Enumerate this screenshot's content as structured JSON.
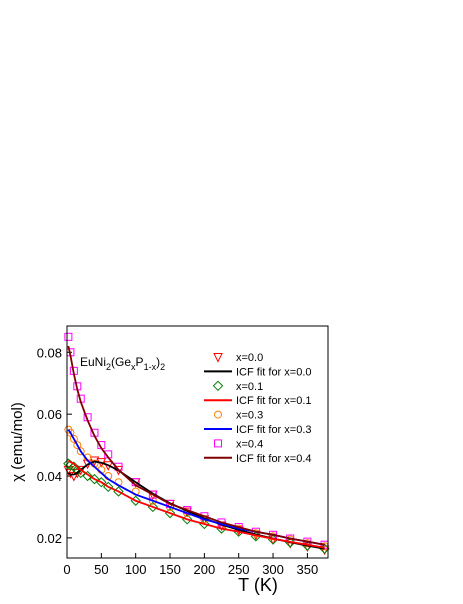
{
  "chart_data": {
    "type": "line",
    "title_parts": [
      {
        "text": "EuNi",
        "baseline": "normal"
      },
      {
        "text": "2",
        "baseline": "sub"
      },
      {
        "text": "(Ge",
        "baseline": "normal"
      },
      {
        "text": "x",
        "baseline": "sub"
      },
      {
        "text": "P",
        "baseline": "normal"
      },
      {
        "text": "1-x",
        "baseline": "sub"
      },
      {
        "text": ")",
        "baseline": "normal"
      },
      {
        "text": "2",
        "baseline": "sub"
      }
    ],
    "x_label": "T (K)",
    "y_label": "χ (emu/mol)",
    "x": [
      2,
      5,
      10,
      15,
      20,
      30,
      40,
      50,
      60,
      75,
      100,
      125,
      150,
      175,
      200,
      225,
      250,
      275,
      300,
      325,
      350,
      375
    ],
    "xlim": [
      0,
      380
    ],
    "xticks": [
      0,
      50,
      100,
      150,
      200,
      250,
      300,
      350
    ],
    "ylim": [
      0.0135,
      0.0885
    ],
    "yticks": [
      0.02,
      0.04,
      0.06,
      0.08
    ],
    "series": [
      {
        "name": "x=0.0",
        "kind": "marker",
        "marker": "triangle-down",
        "color": "#ff0000",
        "values": [
          0.042,
          0.041,
          0.04,
          0.041,
          0.042,
          0.044,
          0.045,
          0.0445,
          0.0435,
          0.042,
          0.038,
          0.034,
          0.031,
          0.0285,
          0.026,
          0.024,
          0.0225,
          0.021,
          0.0195,
          0.0183,
          0.0172,
          0.0162
        ]
      },
      {
        "name": "ICF fit for x=0.0",
        "kind": "line",
        "color": "#000000",
        "values": [
          0.041,
          0.0405,
          0.0405,
          0.041,
          0.042,
          0.0437,
          0.0447,
          0.0443,
          0.0435,
          0.0418,
          0.038,
          0.0343,
          0.0312,
          0.0287,
          0.0263,
          0.0243,
          0.0226,
          0.0211,
          0.0198,
          0.0186,
          0.0175,
          0.0165
        ]
      },
      {
        "name": "x=0.1",
        "kind": "marker",
        "marker": "diamond",
        "color": "#008000",
        "values": [
          0.044,
          0.0435,
          0.043,
          0.042,
          0.041,
          0.04,
          0.039,
          0.038,
          0.0365,
          0.035,
          0.032,
          0.03,
          0.028,
          0.026,
          0.0245,
          0.023,
          0.022,
          0.0205,
          0.0195,
          0.0185,
          0.0175,
          0.0165
        ]
      },
      {
        "name": "ICF fit for x=0.1",
        "kind": "line",
        "color": "#ff0000",
        "values": [
          0.045,
          0.0445,
          0.044,
          0.043,
          0.042,
          0.0405,
          0.039,
          0.038,
          0.0365,
          0.035,
          0.032,
          0.03,
          0.028,
          0.026,
          0.0245,
          0.023,
          0.022,
          0.0208,
          0.0197,
          0.0187,
          0.0178,
          0.0168
        ]
      },
      {
        "name": "x=0.3",
        "kind": "marker",
        "marker": "circle",
        "color": "#ff8000",
        "values": [
          0.055,
          0.054,
          0.052,
          0.05,
          0.048,
          0.046,
          0.044,
          0.042,
          0.04,
          0.038,
          0.035,
          0.032,
          0.03,
          0.028,
          0.026,
          0.024,
          0.023,
          0.0215,
          0.0205,
          0.0195,
          0.0183,
          0.0173
        ]
      },
      {
        "name": "ICF fit for x=0.3",
        "kind": "line",
        "color": "#0000ff",
        "values": [
          0.055,
          0.054,
          0.052,
          0.05,
          0.048,
          0.045,
          0.043,
          0.041,
          0.039,
          0.037,
          0.034,
          0.032,
          0.03,
          0.028,
          0.026,
          0.0245,
          0.023,
          0.022,
          0.021,
          0.0198,
          0.0188,
          0.0178
        ]
      },
      {
        "name": "x=0.4",
        "kind": "marker",
        "marker": "square",
        "color": "#ff00ff",
        "values": [
          0.085,
          0.08,
          0.074,
          0.069,
          0.065,
          0.059,
          0.054,
          0.05,
          0.047,
          0.043,
          0.038,
          0.034,
          0.031,
          0.029,
          0.027,
          0.025,
          0.0235,
          0.022,
          0.021,
          0.0198,
          0.0188,
          0.0178
        ]
      },
      {
        "name": "ICF fit for x=0.4",
        "kind": "line",
        "color": "#800000",
        "values": [
          0.082,
          0.079,
          0.073,
          0.068,
          0.064,
          0.058,
          0.053,
          0.049,
          0.046,
          0.042,
          0.037,
          0.034,
          0.031,
          0.029,
          0.027,
          0.025,
          0.0235,
          0.022,
          0.021,
          0.0198,
          0.0188,
          0.0178
        ]
      }
    ]
  }
}
